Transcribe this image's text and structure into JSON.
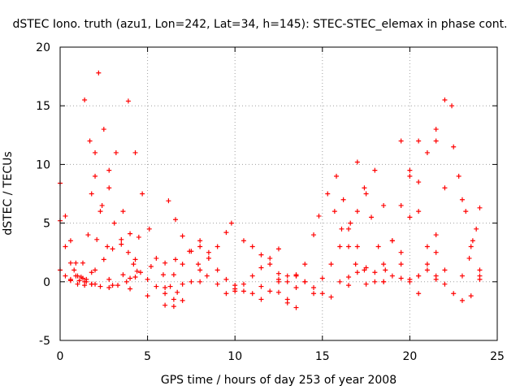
{
  "chart_data": {
    "type": "scatter",
    "title": "dSTEC Iono. truth (azu1, Lon=242, Lat=34, h=145): STEC-STEC_elemax in phase cont.",
    "xlabel": "GPS time / hours of day 253 of year 2008",
    "ylabel": "dSTEC  / TECUs",
    "xlim": [
      0,
      25
    ],
    "ylim": [
      -5,
      20
    ],
    "xticks": [
      "0",
      "5",
      "10",
      "15",
      "20",
      "25"
    ],
    "yticks": [
      "-5",
      "0",
      "5",
      "10",
      "15",
      "20"
    ],
    "grid": true,
    "marker": "+",
    "color": "#ff0000",
    "series": [
      {
        "x": [
          0.0,
          0.3,
          0.6,
          0.9,
          1.2,
          1.4
        ],
        "y": [
          8.4,
          5.6,
          3.5,
          1.6,
          0.4,
          0.0
        ]
      },
      {
        "x": [
          0.0,
          0.3,
          0.6,
          0.9,
          1.1
        ],
        "y": [
          5.2,
          3.0,
          1.6,
          0.5,
          0.1
        ]
      },
      {
        "x": [
          0.0,
          0.3,
          0.6,
          1.0,
          1.4,
          1.8
        ],
        "y": [
          1.0,
          0.5,
          0.1,
          -0.2,
          -0.3,
          -0.2
        ]
      },
      {
        "x": [
          0.6,
          1.0,
          1.3,
          1.6,
          1.8,
          2.0,
          2.2,
          2.5,
          2.8,
          3.1,
          3.5,
          3.9,
          4.3
        ],
        "y": [
          0.2,
          0.5,
          1.6,
          4.0,
          7.5,
          11.0,
          17.8,
          13.0,
          8.0,
          5.0,
          3.2,
          2.5,
          1.9
        ]
      },
      {
        "x": [
          1.5,
          1.8,
          2.1,
          2.4,
          2.8,
          3.2,
          3.6,
          4.0
        ],
        "y": [
          0.0,
          0.8,
          3.6,
          6.5,
          9.5,
          11.0,
          6.0,
          0.3
        ]
      },
      {
        "x": [
          1.4,
          1.7,
          2.0,
          2.3,
          2.7
        ],
        "y": [
          15.5,
          12.0,
          9.0,
          6.0,
          3.0
        ]
      },
      {
        "x": [
          1.5,
          2.0,
          2.5,
          3.0,
          3.5,
          4.0,
          4.5
        ],
        "y": [
          0.2,
          1.0,
          1.9,
          2.8,
          3.6,
          4.1,
          3.8
        ]
      },
      {
        "x": [
          0.8,
          1.3,
          1.8,
          2.3,
          2.8,
          3.3,
          3.8,
          4.3
        ],
        "y": [
          1.0,
          0.3,
          -0.2,
          -0.4,
          -0.5,
          -0.3,
          0.0,
          0.4
        ]
      },
      {
        "x": [
          3.9,
          4.3,
          4.7,
          5.1,
          5.5,
          5.9,
          6.3,
          6.7
        ],
        "y": [
          15.4,
          11.0,
          7.5,
          4.5,
          2.0,
          0.6,
          -0.4,
          -0.9
        ]
      },
      {
        "x": [
          2.0,
          2.8,
          3.6,
          4.4,
          5.2,
          6.0,
          6.6
        ],
        "y": [
          -0.2,
          0.2,
          0.6,
          0.9,
          1.3,
          1.6,
          1.9
        ]
      },
      {
        "x": [
          3.0,
          4.0,
          5.0,
          6.0,
          6.5,
          7.0
        ],
        "y": [
          -0.3,
          -0.6,
          -1.2,
          -2.0,
          -2.1,
          -1.6
        ]
      },
      {
        "x": [
          4.2,
          4.6,
          5.0,
          5.5,
          6.0,
          6.5
        ],
        "y": [
          1.5,
          0.8,
          0.2,
          -0.4,
          -1.0,
          -1.5
        ]
      },
      {
        "x": [
          6.2,
          6.6,
          7.0,
          7.4,
          7.9,
          8.4
        ],
        "y": [
          6.9,
          5.3,
          3.9,
          2.6,
          1.5,
          0.5
        ]
      },
      {
        "x": [
          6.5,
          7.0,
          7.5,
          8.0,
          8.5
        ],
        "y": [
          0.6,
          1.5,
          2.6,
          3.5,
          2.5
        ]
      },
      {
        "x": [
          7.5,
          8.0,
          8.5,
          9.0,
          9.5,
          9.8
        ],
        "y": [
          0.0,
          1.0,
          2.0,
          3.0,
          4.2,
          5.0
        ]
      },
      {
        "x": [
          8.0,
          8.5,
          9.0,
          9.5,
          10.0
        ],
        "y": [
          3.0,
          2.0,
          1.0,
          0.2,
          -0.3
        ]
      },
      {
        "x": [
          6.0,
          7.0,
          8.0,
          9.0,
          10.0,
          11.0
        ],
        "y": [
          -0.5,
          -0.2,
          0.0,
          -0.2,
          -0.6,
          -1.0
        ]
      },
      {
        "x": [
          10.5,
          11.0,
          11.5,
          12.0,
          12.5,
          13.0
        ],
        "y": [
          3.5,
          3.0,
          2.3,
          1.5,
          0.7,
          0.0
        ]
      },
      {
        "x": [
          10.0,
          10.5,
          11.0,
          11.5,
          12.0,
          12.5
        ],
        "y": [
          -0.8,
          -0.2,
          0.5,
          1.2,
          2.0,
          2.8
        ]
      },
      {
        "x": [
          9.5,
          10.5,
          11.5,
          12.5,
          13.5
        ],
        "y": [
          -1.0,
          -0.8,
          -0.4,
          0.2,
          0.5
        ]
      },
      {
        "x": [
          13.0,
          13.5,
          14.0,
          14.5,
          14.8
        ],
        "y": [
          -1.8,
          -0.5,
          1.5,
          4.0,
          5.6
        ]
      },
      {
        "x": [
          12.5,
          13.0,
          13.5,
          14.0,
          14.5
        ],
        "y": [
          0.0,
          0.5,
          0.6,
          0.0,
          -1.0
        ]
      },
      {
        "x": [
          11.5,
          12.0,
          12.5,
          13.0,
          13.5
        ],
        "y": [
          -1.5,
          -0.8,
          -0.9,
          -1.5,
          -2.2
        ]
      },
      {
        "x": [
          13.5,
          14.0,
          14.5,
          15.0,
          15.5
        ],
        "y": [
          0.5,
          0.0,
          -0.5,
          -1.0,
          -1.3
        ]
      },
      {
        "x": [
          15.3,
          15.7,
          16.1,
          16.5,
          16.9
        ],
        "y": [
          7.5,
          6.0,
          4.5,
          3.0,
          1.5
        ]
      },
      {
        "x": [
          15.8,
          16.2,
          16.6,
          17.0,
          17.4
        ],
        "y": [
          9.0,
          7.0,
          5.0,
          3.0,
          1.0
        ]
      },
      {
        "x": [
          15.0,
          15.5,
          16.0,
          16.5,
          17.0,
          17.5
        ],
        "y": [
          0.3,
          1.5,
          3.0,
          4.5,
          6.0,
          7.5
        ]
      },
      {
        "x": [
          16.0,
          16.5,
          17.0,
          17.5,
          18.0,
          18.5
        ],
        "y": [
          0.0,
          0.4,
          0.8,
          1.2,
          0.8,
          0.0
        ]
      },
      {
        "x": [
          17.0,
          17.4,
          17.8,
          18.2,
          18.6
        ],
        "y": [
          10.2,
          8.0,
          5.5,
          3.0,
          1.0
        ]
      },
      {
        "x": [
          18.0,
          18.5,
          19.0,
          19.5,
          20.0
        ],
        "y": [
          9.5,
          6.5,
          3.5,
          1.5,
          0.2
        ]
      },
      {
        "x": [
          18.0,
          18.5,
          19.0,
          19.5,
          20.0,
          20.5
        ],
        "y": [
          0.0,
          1.5,
          3.5,
          6.5,
          9.5,
          12.0
        ]
      },
      {
        "x": [
          19.0,
          19.5,
          20.0,
          20.5,
          21.0,
          21.5
        ],
        "y": [
          0.5,
          2.5,
          5.5,
          8.5,
          11.0,
          13.0
        ]
      },
      {
        "x": [
          19.5,
          20.0,
          20.5,
          21.0,
          21.5
        ],
        "y": [
          12.0,
          9.0,
          6.0,
          3.0,
          0.5
        ]
      },
      {
        "x": [
          20.5,
          21.0,
          21.5,
          22.0,
          22.4
        ],
        "y": [
          -1.0,
          1.0,
          4.0,
          8.0,
          15.0
        ]
      },
      {
        "x": [
          21.5,
          22.0,
          22.5,
          23.0,
          23.5,
          24.0
        ],
        "y": [
          12.0,
          15.5,
          11.5,
          7.0,
          3.0,
          0.5
        ]
      },
      {
        "x": [
          22.0,
          22.5,
          23.0,
          23.5,
          24.0
        ],
        "y": [
          -0.2,
          -1.0,
          -1.6,
          -1.2,
          0.2
        ]
      },
      {
        "x": [
          22.8,
          23.2,
          23.6,
          24.0
        ],
        "y": [
          9.0,
          6.0,
          3.5,
          1.0
        ]
      },
      {
        "x": [
          23.0,
          23.4,
          23.8,
          24.0
        ],
        "y": [
          0.5,
          2.0,
          4.5,
          6.3
        ]
      },
      {
        "x": [
          20.0,
          20.5,
          21.0,
          21.5,
          22.0
        ],
        "y": [
          0.0,
          0.5,
          1.5,
          2.5,
          1.0
        ]
      },
      {
        "x": [
          16.5,
          17.5,
          18.5,
          19.5,
          20.5,
          21.5
        ],
        "y": [
          -0.3,
          -0.2,
          0.0,
          0.3,
          0.5,
          0.2
        ]
      }
    ]
  }
}
